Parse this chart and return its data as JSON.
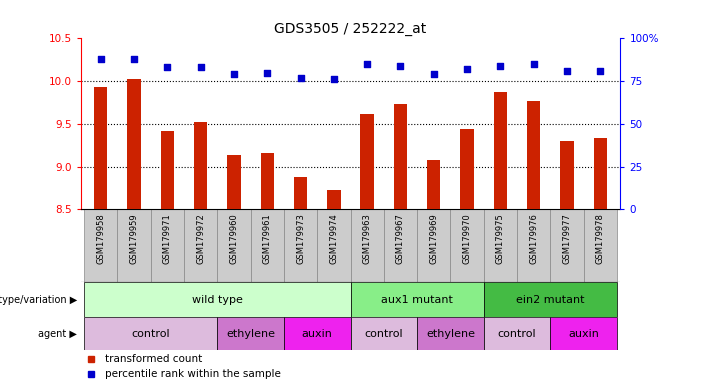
{
  "title": "GDS3505 / 252222_at",
  "samples": [
    "GSM179958",
    "GSM179959",
    "GSM179971",
    "GSM179972",
    "GSM179960",
    "GSM179961",
    "GSM179973",
    "GSM179974",
    "GSM179963",
    "GSM179967",
    "GSM179969",
    "GSM179970",
    "GSM179975",
    "GSM179976",
    "GSM179977",
    "GSM179978"
  ],
  "bar_values": [
    9.93,
    10.02,
    9.42,
    9.52,
    9.13,
    9.16,
    8.88,
    8.72,
    9.62,
    9.73,
    9.08,
    9.44,
    9.87,
    9.77,
    9.3,
    9.34
  ],
  "percentile_values": [
    88,
    88,
    83,
    83,
    79,
    80,
    77,
    76,
    85,
    84,
    79,
    82,
    84,
    85,
    81,
    81
  ],
  "ylim_left": [
    8.5,
    10.5
  ],
  "ylim_right": [
    0,
    100
  ],
  "bar_color": "#cc2200",
  "dot_color": "#0000cc",
  "grid_values": [
    9.0,
    9.5,
    10.0
  ],
  "yticks_left": [
    8.5,
    9.0,
    9.5,
    10.0,
    10.5
  ],
  "yticks_right": [
    0,
    25,
    50,
    75,
    100
  ],
  "genotype_groups": [
    {
      "label": "wild type",
      "start": 0,
      "end": 8,
      "color": "#ccffcc"
    },
    {
      "label": "aux1 mutant",
      "start": 8,
      "end": 12,
      "color": "#88ee88"
    },
    {
      "label": "ein2 mutant",
      "start": 12,
      "end": 16,
      "color": "#44bb44"
    }
  ],
  "agent_groups": [
    {
      "label": "control",
      "start": 0,
      "end": 4,
      "color": "#ddbbdd"
    },
    {
      "label": "ethylene",
      "start": 4,
      "end": 6,
      "color": "#cc77cc"
    },
    {
      "label": "auxin",
      "start": 6,
      "end": 8,
      "color": "#ee22ee"
    },
    {
      "label": "control",
      "start": 8,
      "end": 10,
      "color": "#ddbbdd"
    },
    {
      "label": "ethylene",
      "start": 10,
      "end": 12,
      "color": "#cc77cc"
    },
    {
      "label": "control",
      "start": 12,
      "end": 14,
      "color": "#ddbbdd"
    },
    {
      "label": "auxin",
      "start": 14,
      "end": 16,
      "color": "#ee22ee"
    }
  ],
  "legend_items": [
    {
      "label": "transformed count",
      "color": "#cc2200"
    },
    {
      "label": "percentile rank within the sample",
      "color": "#0000cc"
    }
  ],
  "n": 16,
  "bar_width": 0.4,
  "sample_box_color": "#cccccc",
  "sample_box_edge": "#888888"
}
